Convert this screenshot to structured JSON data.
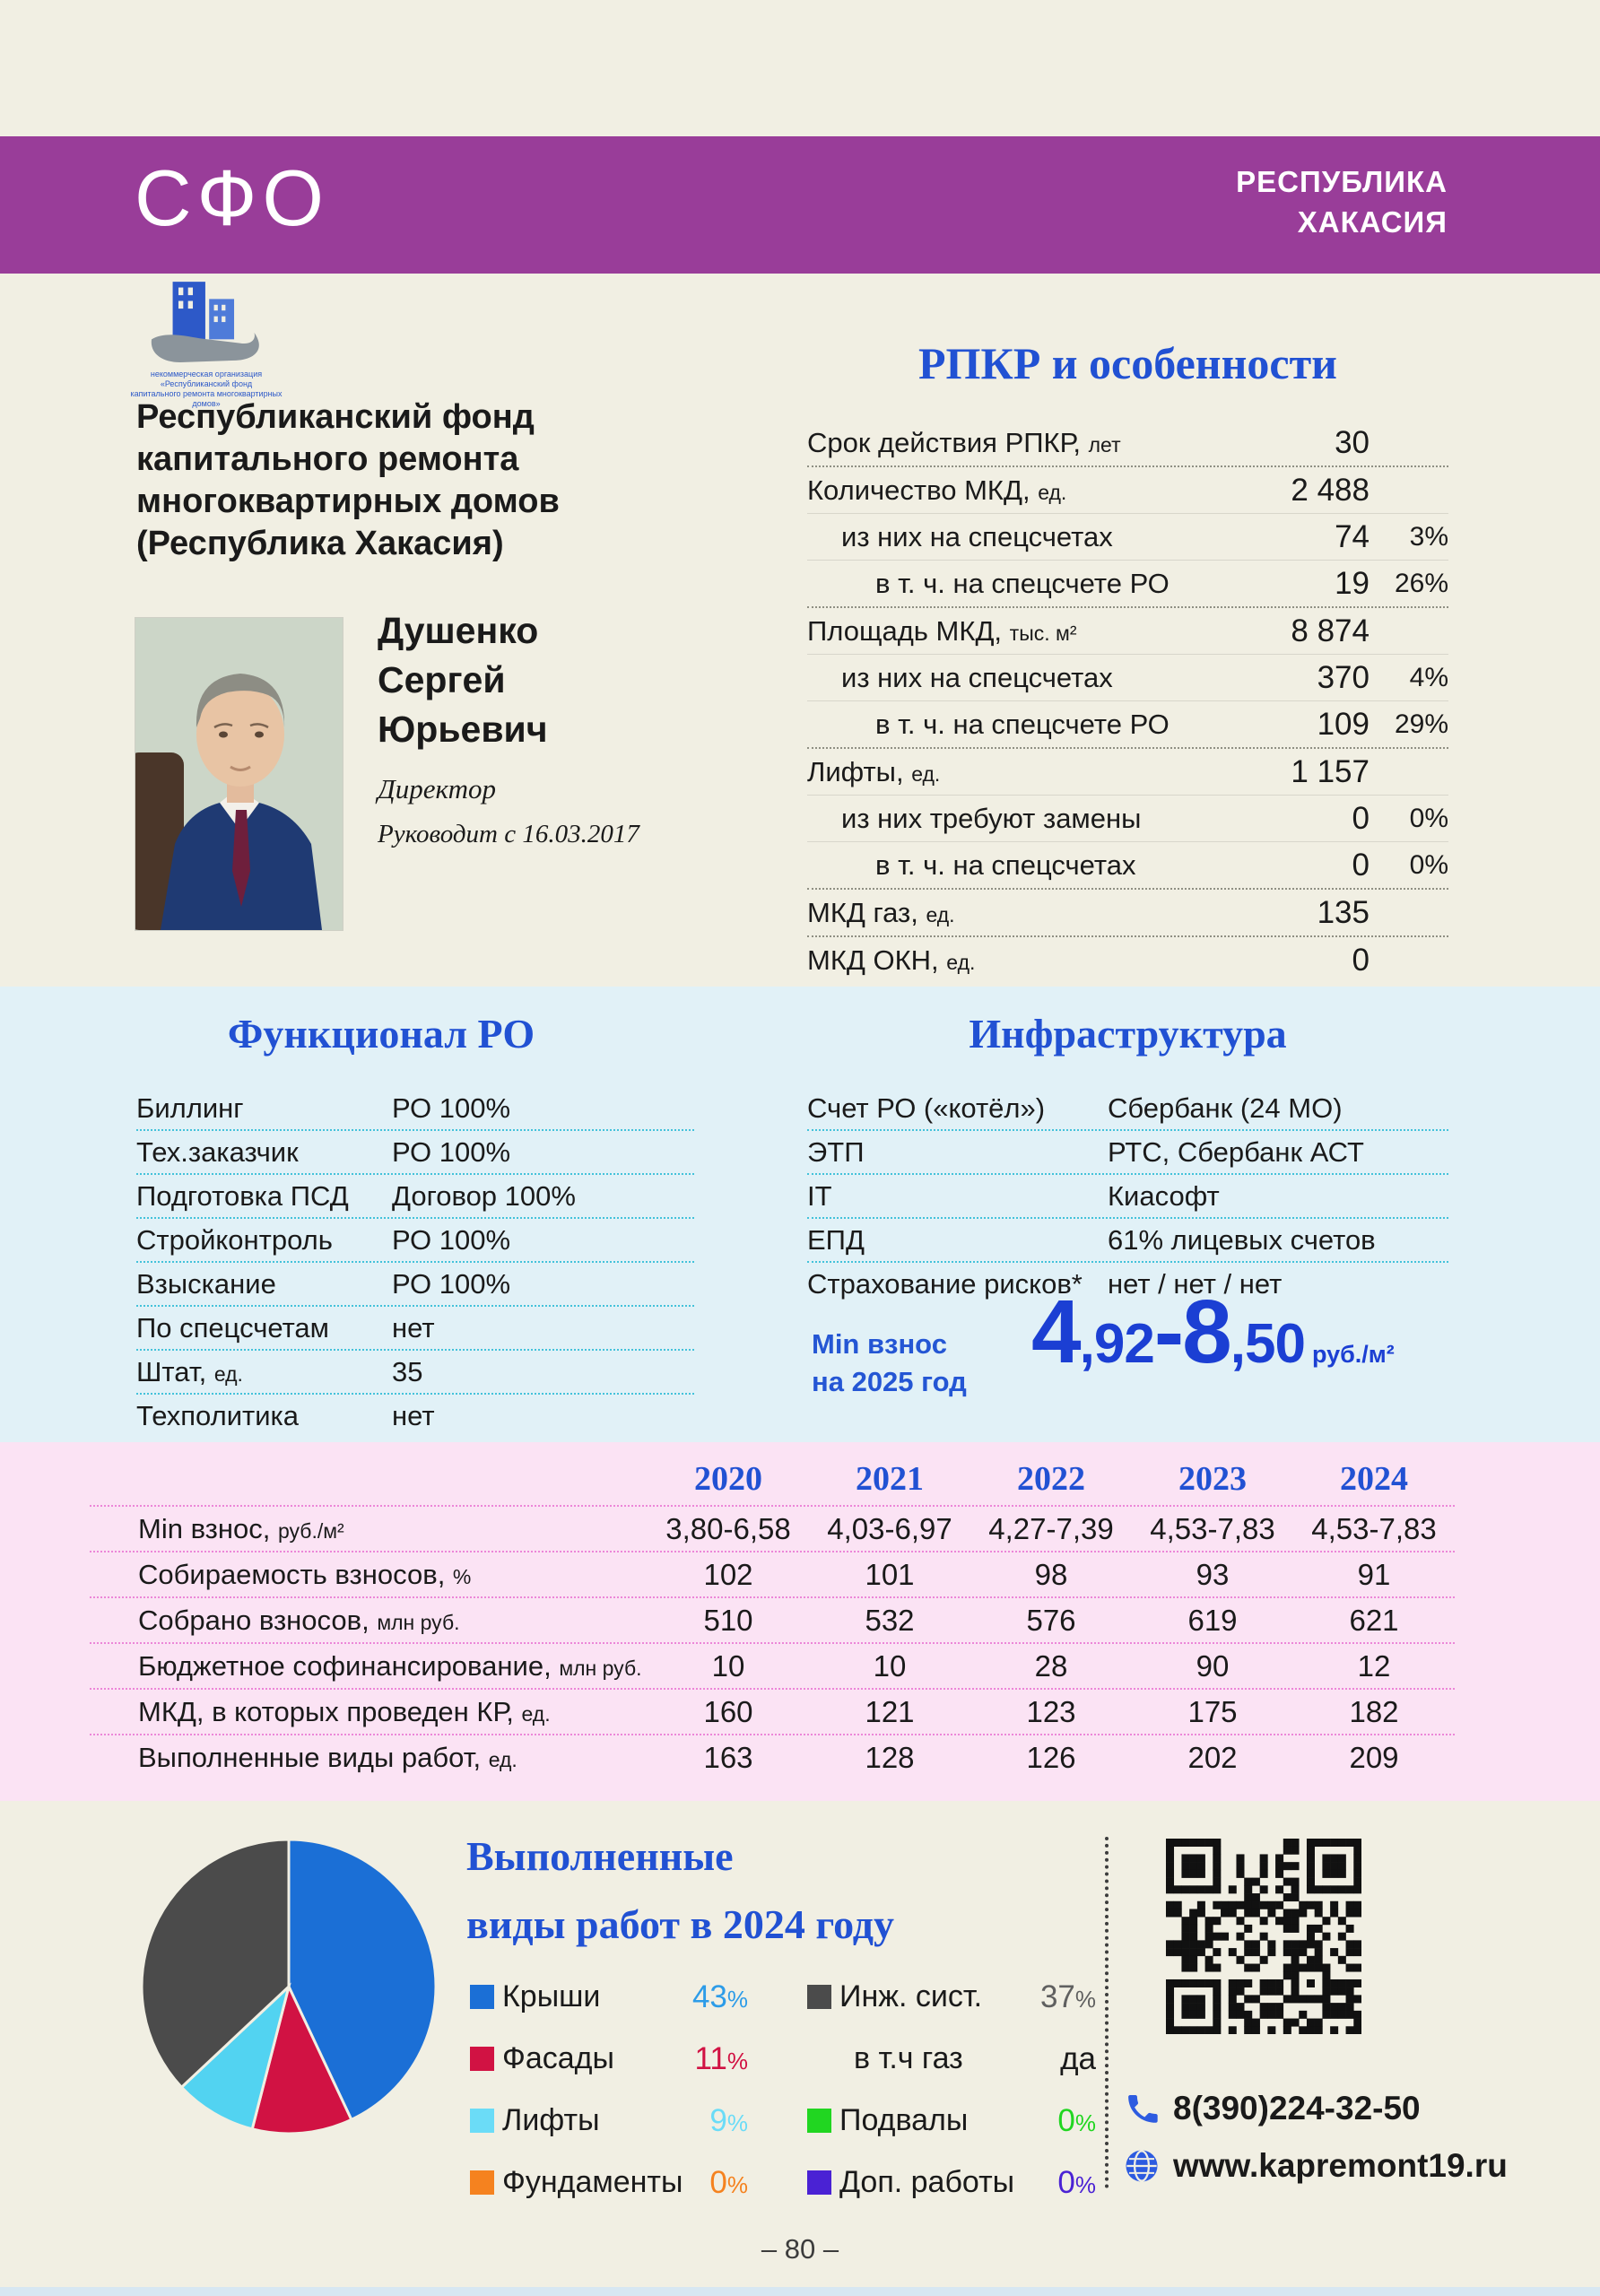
{
  "header": {
    "district": "СФО",
    "region": [
      "РЕСПУБЛИКА",
      "ХАКАСИЯ"
    ]
  },
  "org": {
    "name_lines": [
      "Республиканский фонд",
      "капитального ремонта",
      "многоквартирных домов",
      "(Республика Хакасия)"
    ],
    "logo_caption": [
      "некоммерческая организация",
      "«Республиканский фонд",
      "капитального ремонта многоквартирных домов»"
    ]
  },
  "director": {
    "name_lines": [
      "Душенко",
      "Сергей",
      "Юрьевич"
    ],
    "position": "Директор",
    "tenure": "Руководит с 16.03.2017"
  },
  "rpkr": {
    "title": "РПКР и особенности",
    "rows": [
      {
        "label": "Срок действия РПКР",
        "unit": "лет",
        "value": "30",
        "pct": "",
        "indent": 0,
        "sep": "dotted"
      },
      {
        "label": "Количество МКД",
        "unit": "ед.",
        "value": "2 488",
        "pct": "",
        "indent": 0,
        "sep": "thin"
      },
      {
        "label": "из них на спецсчетах",
        "unit": "",
        "value": "74",
        "pct": "3%",
        "indent": 1,
        "sep": "thin"
      },
      {
        "label": "в т. ч. на спецсчете РО",
        "unit": "",
        "value": "19",
        "pct": "26%",
        "indent": 2,
        "sep": "dotted"
      },
      {
        "label": "Площадь МКД",
        "unit": "тыс. м²",
        "value": "8 874",
        "pct": "",
        "indent": 0,
        "sep": "thin"
      },
      {
        "label": "из них на спецсчетах",
        "unit": "",
        "value": "370",
        "pct": "4%",
        "indent": 1,
        "sep": "thin"
      },
      {
        "label": "в т. ч. на спецсчете РО",
        "unit": "",
        "value": "109",
        "pct": "29%",
        "indent": 2,
        "sep": "dotted"
      },
      {
        "label": "Лифты",
        "unit": "ед.",
        "value": "1 157",
        "pct": "",
        "indent": 0,
        "sep": "thin"
      },
      {
        "label": "из них требуют замены",
        "unit": "",
        "value": "0",
        "pct": "0%",
        "indent": 1,
        "sep": "thin"
      },
      {
        "label": "в т. ч. на спецсчетах",
        "unit": "",
        "value": "0",
        "pct": "0%",
        "indent": 2,
        "sep": "dotted"
      },
      {
        "label": "МКД газ",
        "unit": "ед.",
        "value": "135",
        "pct": "",
        "indent": 0,
        "sep": "dotted"
      },
      {
        "label": "МКД ОКН",
        "unit": "ед.",
        "value": "0",
        "pct": "",
        "indent": 0,
        "sep": "none"
      }
    ]
  },
  "functional": {
    "title": "Функционал РО",
    "rows": [
      {
        "label": "Биллинг",
        "unit": "",
        "value": "РО 100%"
      },
      {
        "label": "Тех.заказчик",
        "unit": "",
        "value": "РО 100%"
      },
      {
        "label": "Подготовка ПСД",
        "unit": "",
        "value": "Договор 100%"
      },
      {
        "label": "Стройконтроль",
        "unit": "",
        "value": "РО 100%"
      },
      {
        "label": "Взыскание",
        "unit": "",
        "value": "РО 100%"
      },
      {
        "label": "По спецсчетам",
        "unit": "",
        "value": "нет"
      },
      {
        "label": "Штат",
        "unit": "ед.",
        "value": "35"
      },
      {
        "label": "Техполитика",
        "unit": "",
        "value": "нет"
      }
    ]
  },
  "infrastructure": {
    "title": "Инфраструктура",
    "rows": [
      {
        "label": "Счет РО («котёл»)",
        "unit": "",
        "value": "Сбербанк (24 МО)"
      },
      {
        "label": "ЭТП",
        "unit": "",
        "value": "РТС, Сбербанк АСТ"
      },
      {
        "label": "IT",
        "unit": "",
        "value": "Киасофт"
      },
      {
        "label": "ЕПД",
        "unit": "",
        "value": "61% лицевых счетов"
      },
      {
        "label": "Страхование рисков*",
        "unit": "",
        "value": "нет / нет / нет"
      }
    ],
    "min_fee": {
      "label_lines": [
        "Min взнос",
        "на 2025 год"
      ],
      "parts": [
        {
          "t": "4",
          "big": true
        },
        {
          "t": ",92",
          "big": false
        },
        {
          "t": "-8",
          "big": true
        },
        {
          "t": ",50",
          "big": false
        }
      ],
      "unit": "руб./м²"
    }
  },
  "years_table": {
    "columns": [
      "2020",
      "2021",
      "2022",
      "2023",
      "2024"
    ],
    "rows": [
      {
        "label": "Min взнос",
        "unit": "руб./м²",
        "values": [
          "3,80-6,58",
          "4,03-6,97",
          "4,27-7,39",
          "4,53-7,83",
          "4,53-7,83"
        ]
      },
      {
        "label": "Собираемость взносов",
        "unit": "%",
        "values": [
          "102",
          "101",
          "98",
          "93",
          "91"
        ]
      },
      {
        "label": "Собрано взносов",
        "unit": "млн руб.",
        "values": [
          "510",
          "532",
          "576",
          "619",
          "621"
        ]
      },
      {
        "label": "Бюджетное софинансирование",
        "unit": "млн руб.",
        "values": [
          "10",
          "10",
          "28",
          "90",
          "12"
        ]
      },
      {
        "label": "МКД, в которых проведен КР",
        "unit": "ед.",
        "values": [
          "160",
          "121",
          "123",
          "175",
          "182"
        ]
      },
      {
        "label": "Выполненные виды работ",
        "unit": "ед.",
        "values": [
          "163",
          "128",
          "126",
          "202",
          "209"
        ]
      }
    ]
  },
  "chart_data": {
    "type": "pie",
    "title": "Выполненные виды работ в 2024 году",
    "title_lines": [
      "Выполненные",
      "виды работ в 2024 году"
    ],
    "slices": [
      {
        "label": "Крыши",
        "value": 43,
        "color": "#1b6fd6"
      },
      {
        "label": "Фасады",
        "value": 11,
        "color": "#d11243"
      },
      {
        "label": "Лифты",
        "value": 9,
        "color": "#52d3f1"
      },
      {
        "label": "Инж. сист.",
        "value": 37,
        "color": "#4b4b4b"
      },
      {
        "label": "Фундаменты",
        "value": 0,
        "color": "#f5821f"
      },
      {
        "label": "Подвалы",
        "value": 0,
        "color": "#21d621"
      },
      {
        "label": "Доп. работы",
        "value": 0,
        "color": "#4a22d4"
      }
    ],
    "legend_position": "right, two columns",
    "legend": {
      "col1": [
        {
          "label": "Крыши",
          "value": "43%",
          "color": "#1b6fd6",
          "value_color": "#2d9ce8"
        },
        {
          "label": "Фасады",
          "value": "11%",
          "color": "#d11243",
          "value_color": "#d11243"
        },
        {
          "label": "Лифты",
          "value": "9%",
          "color": "#6bdcf7",
          "value_color": "#6bdcf7"
        },
        {
          "label": "Фундаменты",
          "value": "0%",
          "color": "#f5821f",
          "value_color": "#f5821f"
        }
      ],
      "col2": [
        {
          "label": "Инж. сист.",
          "value": "37%",
          "color": "#4b4b4b",
          "value_color": "#606060"
        },
        {
          "label": "в т.ч газ",
          "value": "да",
          "color": null,
          "value_color": "#1a1a1a",
          "indent": true
        },
        {
          "label": "Подвалы",
          "value": "0%",
          "color": "#21d621",
          "value_color": "#21d621"
        },
        {
          "label": "Доп. работы",
          "value": "0%",
          "color": "#4a22d4",
          "value_color": "#4a22d4"
        }
      ]
    }
  },
  "contacts": {
    "phone": "8(390)224-32-50",
    "website": "www.kapremont19.ru"
  },
  "page": {
    "number": "– 80 –"
  },
  "colors": {
    "page_bg": "#f1efe3",
    "header_purple": "#993d99",
    "heading_blue": "#2151d3",
    "band_blue": "#e1f1f7",
    "band_pink": "#fbe3f4",
    "pink_dotted": "#ec86d8",
    "teal_dotted": "#43c2da",
    "fee_blue": "#1b3fd3",
    "contact_icon_blue": "#2d5be0"
  }
}
